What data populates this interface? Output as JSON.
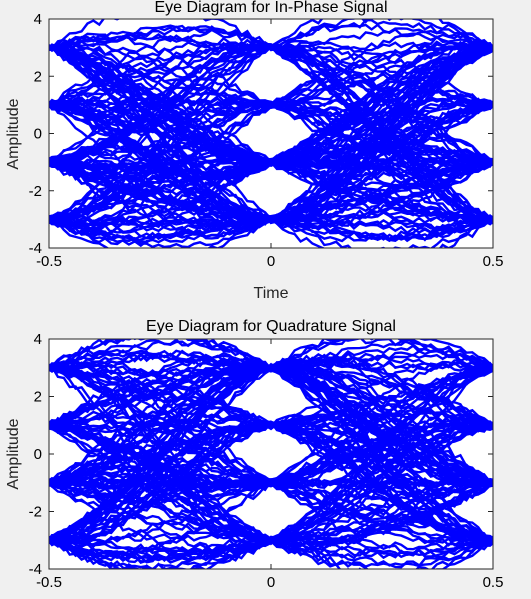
{
  "chart_data": [
    {
      "type": "line",
      "title": "Eye Diagram for In-Phase Signal",
      "xlabel": "Time",
      "ylabel": "Amplitude",
      "xlim": [
        -0.5,
        0.5
      ],
      "ylim": [
        -4,
        4
      ],
      "xticks": [
        "-0.5",
        "0",
        "0.5"
      ],
      "yticks": [
        "-4",
        "-2",
        "0",
        "2",
        "4"
      ],
      "levels": [
        -3,
        -1,
        1,
        3
      ],
      "color": "#0000ff",
      "grid": false
    },
    {
      "type": "line",
      "title": "Eye Diagram for Quadrature Signal",
      "xlabel": "",
      "ylabel": "Amplitude",
      "xlim": [
        -0.5,
        0.5
      ],
      "ylim": [
        -4,
        4
      ],
      "xticks": [
        "-0.5",
        "0",
        "0.5"
      ],
      "yticks": [
        "-4",
        "-2",
        "0",
        "2",
        "4"
      ],
      "levels": [
        -3,
        -1,
        1,
        3
      ],
      "color": "#0000ff",
      "grid": false
    }
  ]
}
